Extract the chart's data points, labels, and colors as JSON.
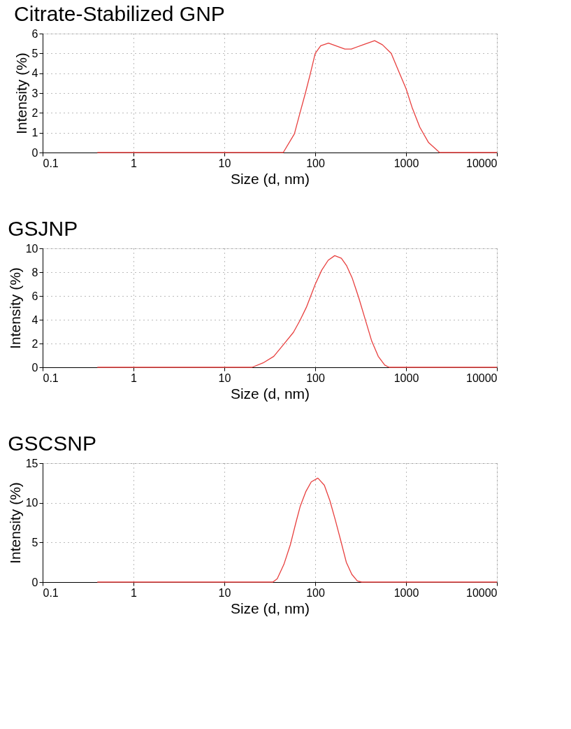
{
  "chart_data": [
    {
      "type": "line",
      "title": "Citrate-Stabilized GNP",
      "xlabel": "Size (d, nm)",
      "ylabel": "Intensity (%)",
      "log": "x",
      "xlim": [
        0.1,
        10000
      ],
      "xticks": [
        0.1,
        1,
        10,
        100,
        1000,
        10000
      ],
      "ylim": [
        0,
        6
      ],
      "yticks": [
        0,
        1,
        2,
        3,
        4,
        5,
        6
      ],
      "grid": true,
      "marker": "none",
      "line_style": "solid",
      "series": [
        {
          "color": "#e8403f",
          "x": [
            0.4,
            44.5,
            59,
            68,
            78,
            88,
            100,
            115,
            140,
            212,
            250,
            351,
            451,
            548,
            686,
            857,
            1000,
            1164,
            1416,
            1770,
            2340,
            10000
          ],
          "values": [
            0,
            0,
            0.94,
            2.0,
            3.0,
            3.94,
            5.0,
            5.39,
            5.52,
            5.22,
            5.22,
            5.47,
            5.64,
            5.44,
            5.0,
            3.94,
            3.22,
            2.28,
            1.28,
            0.5,
            0,
            0
          ]
        }
      ]
    },
    {
      "type": "line",
      "title": "GSJNP",
      "xlabel": "Size (d, nm)",
      "ylabel": "Intensity (%)",
      "log": "x",
      "xlim": [
        0.1,
        10000
      ],
      "xticks": [
        0.1,
        1,
        10,
        100,
        1000,
        10000
      ],
      "ylim": [
        0,
        10
      ],
      "yticks": [
        0,
        2,
        4,
        6,
        8,
        10
      ],
      "grid": true,
      "marker": "none",
      "line_style": "solid",
      "series": [
        {
          "color": "#e8403f",
          "x": [
            0.4,
            20.2,
            26.7,
            35,
            45,
            57.6,
            68,
            80,
            100,
            118,
            139,
            164,
            194,
            222,
            255,
            301,
            355,
            419,
            494,
            583,
            650,
            10000
          ],
          "values": [
            0,
            0,
            0.37,
            0.92,
            1.93,
            2.94,
            3.94,
            5.05,
            6.97,
            8.17,
            9.0,
            9.39,
            9.17,
            8.53,
            7.52,
            5.87,
            4.04,
            2.2,
            0.92,
            0.18,
            0,
            0
          ]
        }
      ]
    },
    {
      "type": "line",
      "title": "GSCSNP",
      "xlabel": "Size (d, nm)",
      "ylabel": "Intensity (%)",
      "log": "x",
      "xlim": [
        0.1,
        10000
      ],
      "xticks": [
        0.1,
        1,
        10,
        100,
        1000,
        10000
      ],
      "ylim": [
        0,
        15
      ],
      "yticks": [
        0,
        5,
        10,
        15
      ],
      "grid": true,
      "marker": "none",
      "line_style": "solid",
      "series": [
        {
          "color": "#e8403f",
          "x": [
            0.4,
            34.2,
            38.2,
            45.2,
            53.3,
            61.3,
            68.5,
            78.7,
            90.5,
            107,
            126,
            145,
            167,
            192,
            220,
            253,
            291,
            325,
            10000
          ],
          "values": [
            0,
            0,
            0.42,
            2.22,
            4.72,
            7.5,
            9.58,
            11.39,
            12.64,
            13.11,
            12.22,
            10.28,
            7.78,
            5.14,
            2.5,
            0.97,
            0.14,
            0,
            0
          ]
        }
      ]
    }
  ]
}
